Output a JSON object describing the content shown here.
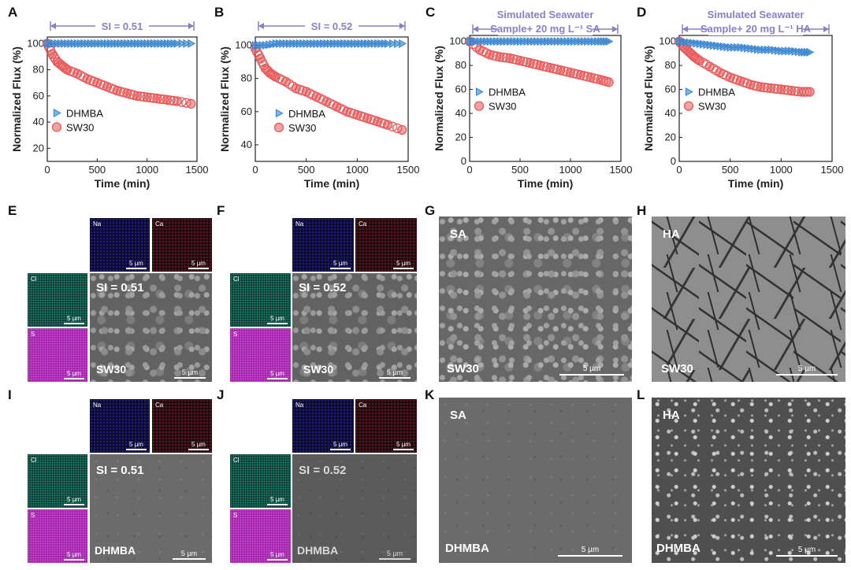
{
  "panels": {
    "A": "A",
    "B": "B",
    "C": "C",
    "D": "D",
    "E": "E",
    "F": "F",
    "G": "G",
    "H": "H",
    "I": "I",
    "J": "J",
    "K": "K",
    "L": "L"
  },
  "colors": {
    "dhmba": "#3a86d0",
    "sw30": "#e85a5a",
    "band": "#8a7fc8"
  },
  "chart_data": [
    {
      "type": "scatter",
      "annotation": "SI = 0.51",
      "xlabel": "Time (min)",
      "ylabel": "Normalized Flux (%)",
      "xlim": [
        0,
        1500
      ],
      "ylim": [
        10,
        105
      ],
      "xticks": [
        "0",
        "500",
        "1000",
        "1500"
      ],
      "yticks": [
        "20",
        "40",
        "60",
        "80",
        "100"
      ],
      "legend_position": "center-left",
      "series": [
        {
          "name": "DHMBA",
          "x": [
            0,
            100,
            200,
            300,
            400,
            500,
            600,
            700,
            800,
            900,
            1000,
            1100,
            1200,
            1300,
            1440
          ],
          "y": [
            100,
            100,
            100,
            100,
            100,
            100,
            100,
            100,
            100,
            100,
            100,
            100,
            100,
            100,
            100
          ]
        },
        {
          "name": "SW30",
          "x": [
            0,
            50,
            100,
            150,
            200,
            300,
            400,
            500,
            600,
            700,
            800,
            900,
            1000,
            1100,
            1200,
            1300,
            1440
          ],
          "y": [
            100,
            92,
            86,
            83,
            80,
            77,
            73,
            70,
            67,
            64,
            62,
            60,
            59,
            58,
            57,
            56,
            54
          ]
        }
      ]
    },
    {
      "type": "scatter",
      "annotation": "SI = 0.52",
      "xlabel": "Time (min)",
      "ylabel": "Normalized Flux (%)",
      "xlim": [
        0,
        1500
      ],
      "ylim": [
        30,
        105
      ],
      "xticks": [
        "0",
        "500",
        "1000",
        "1500"
      ],
      "yticks": [
        "40",
        "60",
        "80",
        "100"
      ],
      "legend_position": "center-left",
      "series": [
        {
          "name": "DHMBA",
          "x": [
            0,
            100,
            200,
            300,
            400,
            500,
            600,
            700,
            800,
            900,
            1000,
            1100,
            1200,
            1300,
            1440
          ],
          "y": [
            100,
            100,
            101,
            101,
            101,
            101,
            101,
            101,
            101,
            101,
            101,
            101,
            101,
            101,
            101
          ]
        },
        {
          "name": "SW30",
          "x": [
            0,
            50,
            100,
            150,
            200,
            300,
            400,
            500,
            600,
            700,
            800,
            900,
            1000,
            1100,
            1200,
            1300,
            1440
          ],
          "y": [
            98,
            92,
            86,
            83,
            81,
            78,
            74,
            72,
            69,
            66,
            63,
            60,
            58,
            56,
            54,
            52,
            49
          ]
        }
      ]
    },
    {
      "type": "scatter",
      "annotation": [
        "Simulated Seawater",
        "Sample+ 20 mg L⁻¹ SA"
      ],
      "xlabel": "Time (min)",
      "ylabel": "Normalized Flux (%)",
      "xlim": [
        0,
        1500
      ],
      "ylim": [
        0,
        105
      ],
      "xticks": [
        "0",
        "500",
        "1000",
        "1500"
      ],
      "yticks": [
        "0",
        "20",
        "40",
        "60",
        "80",
        "100"
      ],
      "legend_position": "center-left",
      "series": [
        {
          "name": "DHMBA",
          "x": [
            0,
            100,
            200,
            300,
            400,
            500,
            600,
            700,
            800,
            900,
            1000,
            1100,
            1200,
            1300,
            1380
          ],
          "y": [
            100,
            100,
            100,
            100,
            100,
            100,
            100,
            100,
            100,
            100,
            100,
            100,
            100,
            100,
            100
          ]
        },
        {
          "name": "SW30",
          "x": [
            0,
            100,
            200,
            300,
            400,
            500,
            600,
            700,
            800,
            900,
            1000,
            1100,
            1200,
            1300,
            1380
          ],
          "y": [
            100,
            93,
            89,
            87,
            86,
            84,
            82,
            80,
            78,
            76,
            74,
            72,
            70,
            68,
            66
          ]
        }
      ]
    },
    {
      "type": "scatter",
      "annotation": [
        "Simulated Seawater",
        "Sample+ 20 mg L⁻¹ HA"
      ],
      "xlabel": "Time (min)",
      "ylabel": "Normalized Flux (%)",
      "xlim": [
        0,
        1500
      ],
      "ylim": [
        0,
        105
      ],
      "xticks": [
        "0",
        "500",
        "1000",
        "1500"
      ],
      "yticks": [
        "0",
        "20",
        "40",
        "60",
        "80",
        "100"
      ],
      "legend_position": "center-left",
      "series": [
        {
          "name": "DHMBA",
          "x": [
            0,
            100,
            200,
            300,
            400,
            500,
            600,
            700,
            800,
            900,
            1000,
            1100,
            1200,
            1280
          ],
          "y": [
            100,
            99,
            98,
            97,
            96,
            95,
            95,
            94,
            93,
            93,
            92,
            92,
            91,
            91
          ]
        },
        {
          "name": "SW30",
          "x": [
            0,
            50,
            100,
            150,
            200,
            300,
            400,
            500,
            600,
            700,
            800,
            900,
            1000,
            1100,
            1200,
            1280
          ],
          "y": [
            100,
            95,
            91,
            87,
            84,
            79,
            74,
            70,
            67,
            64,
            62,
            61,
            60,
            59,
            58,
            58
          ]
        }
      ]
    }
  ],
  "images": {
    "E": {
      "na": "Na",
      "ca": "Ca",
      "cl": "Cl",
      "s": "S",
      "si": "SI = 0.51",
      "name": "SW30",
      "scale": "5 µm"
    },
    "F": {
      "na": "Na",
      "ca": "Ca",
      "cl": "Cl",
      "s": "S",
      "si": "SI = 0.52",
      "name": "SW30",
      "scale": "5 µm"
    },
    "G": {
      "tag": "SA",
      "name": "SW30",
      "scale": "5 µm"
    },
    "H": {
      "tag": "HA",
      "name": "SW30",
      "scale": "5 µm"
    },
    "I": {
      "na": "Na",
      "ca": "Ca",
      "cl": "Cl",
      "s": "S",
      "si": "SI = 0.51",
      "name": "DHMBA",
      "scale": "5 µm"
    },
    "J": {
      "na": "Na",
      "ca": "Ca",
      "cl": "Cl",
      "s": "S",
      "si": "SI = 0.52",
      "name": "DHMBA",
      "scale": "5 µm"
    },
    "K": {
      "tag": "SA",
      "name": "DHMBA",
      "scale": "5 µm"
    },
    "L": {
      "tag": "HA",
      "name": "DHMBA",
      "scale": "5 µm"
    }
  }
}
